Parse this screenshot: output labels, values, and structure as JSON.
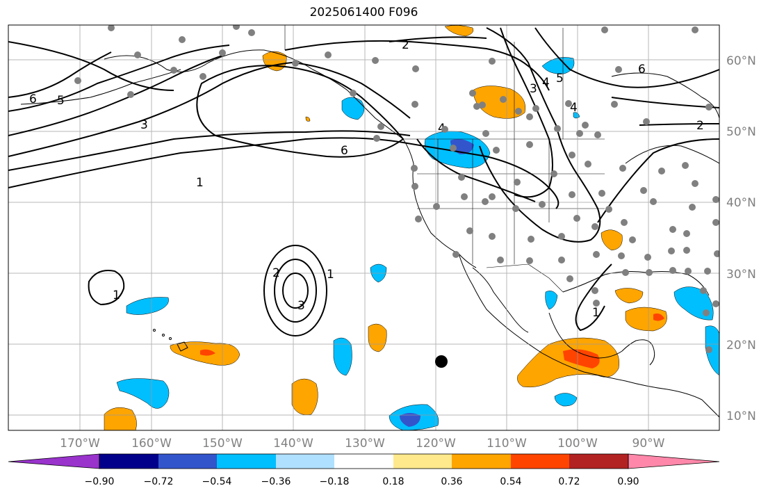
{
  "title": "2025061400 F096",
  "map": {
    "lon_ticks": [
      "170°W",
      "160°W",
      "150°W",
      "140°W",
      "130°W",
      "120°W",
      "110°W",
      "100°W",
      "90°W"
    ],
    "lat_ticks": [
      "60°N",
      "50°N",
      "40°N",
      "30°N",
      "20°N",
      "10°N"
    ],
    "contour_labels": [
      "2",
      "6",
      "5",
      "3",
      "4",
      "3",
      "4",
      "5",
      "6",
      "2",
      "4",
      "6",
      "1",
      "2",
      "3",
      "1",
      "1",
      "1"
    ],
    "grid": true
  },
  "colorbar": {
    "tick_labels": [
      "−0.90",
      "−0.72",
      "−0.54",
      "−0.36",
      "−0.18",
      "0.18",
      "0.36",
      "0.54",
      "0.72",
      "0.90"
    ],
    "colors": [
      "#9933cc",
      "#00008b",
      "#3355cc",
      "#00bfff",
      "#b0e0ff",
      "#ffffff",
      "#ffe98c",
      "#ffa500",
      "#ff4400",
      "#b22222",
      "#ff88aa"
    ]
  }
}
